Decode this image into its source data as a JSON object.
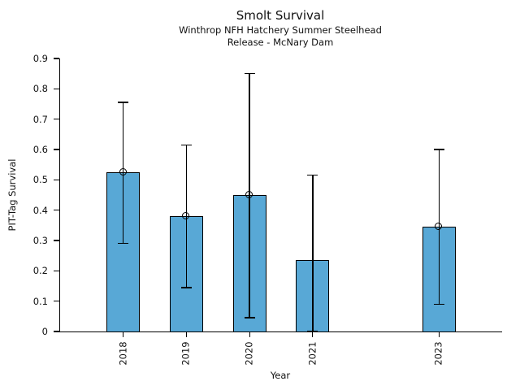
{
  "chart_data": {
    "type": "bar",
    "title": "Smolt Survival",
    "subtitle_line1": "Winthrop NFH Hatchery Summer Steelhead",
    "subtitle_line2": "Release - McNary Dam",
    "xlabel": "Year",
    "ylabel": "PIT-Tag Survival",
    "categories": [
      "2018",
      "2019",
      "2020",
      "2021",
      "2023"
    ],
    "values": [
      0.525,
      0.38,
      0.45,
      0.235,
      0.345
    ],
    "error_low": [
      0.29,
      0.145,
      0.045,
      0.0,
      0.09
    ],
    "error_high": [
      0.755,
      0.615,
      0.85,
      0.515,
      0.6
    ],
    "point_markers": [
      true,
      true,
      true,
      false,
      true
    ],
    "ylim": [
      0,
      0.9
    ],
    "ytick_step": 0.1,
    "ytick_labels": [
      "0",
      "0.1",
      "0.2",
      "0.3",
      "0.4",
      "0.5",
      "0.6",
      "0.7",
      "0.8",
      "0.9"
    ],
    "xlim": [
      2017.0,
      2024.0
    ],
    "grid": false,
    "legend": false,
    "bar_color": "#58a8d6",
    "bar_edge_color": "#000000",
    "error_color": "#000000",
    "text_color": "#111111"
  }
}
